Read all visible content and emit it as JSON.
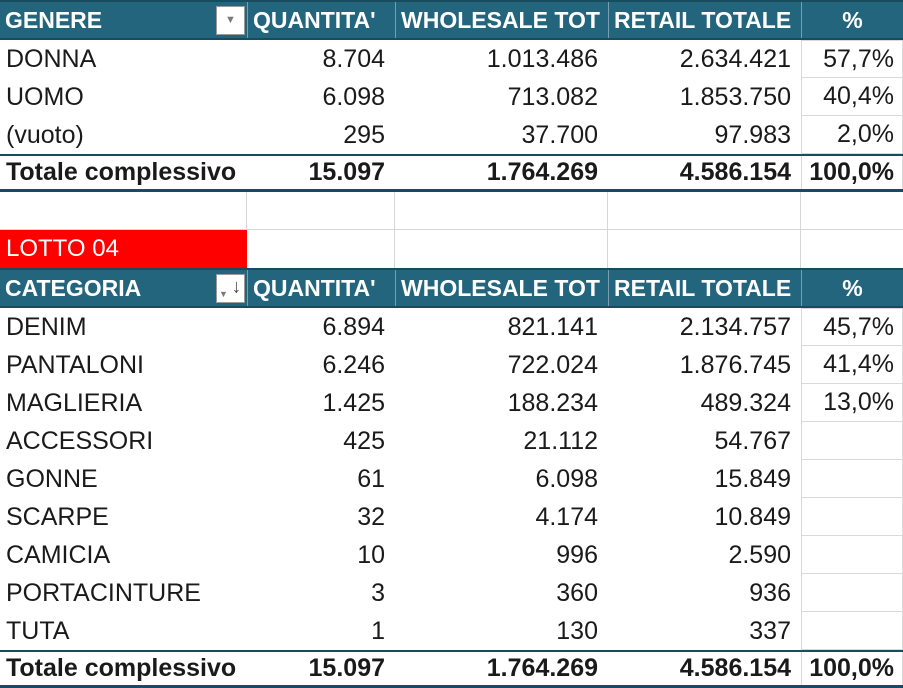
{
  "colors": {
    "header_bg": "#24657E",
    "header_border": "#174C60",
    "lotto_bg": "#FE0000",
    "gridline": "#D6D6D6",
    "pct_cell_border": "#D9D9D9",
    "text": "#1A1A1A",
    "header_text": "#FFFFFF"
  },
  "icons": {
    "filter_glyph": "▼",
    "sort_descending_glyph": "↓"
  },
  "genere_table": {
    "header": {
      "col1": "GENERE",
      "col2": "QUANTITA'",
      "col3": "WHOLESALE TOT",
      "col4": "RETAIL TOTALE",
      "col5": "%"
    },
    "rows": [
      {
        "label": "DONNA",
        "quantita": "8.704",
        "wholesale": "1.013.486",
        "retail": "2.634.421",
        "pct": "57,7%"
      },
      {
        "label": "UOMO",
        "quantita": "6.098",
        "wholesale": "713.082",
        "retail": "1.853.750",
        "pct": "40,4%"
      },
      {
        "label": "(vuoto)",
        "quantita": "295",
        "wholesale": "37.700",
        "retail": "97.983",
        "pct": "2,0%"
      }
    ],
    "total": {
      "label": "Totale complessivo",
      "quantita": "15.097",
      "wholesale": "1.764.269",
      "retail": "4.586.154",
      "pct": "100,0%"
    }
  },
  "lotto": {
    "label": "LOTTO 04"
  },
  "categoria_table": {
    "header": {
      "col1": "CATEGORIA",
      "col2": "QUANTITA'",
      "col3": "WHOLESALE TOT",
      "col4": "RETAIL TOTALE",
      "col5": "%"
    },
    "rows": [
      {
        "label": "DENIM",
        "quantita": "6.894",
        "wholesale": "821.141",
        "retail": "2.134.757",
        "pct": "45,7%"
      },
      {
        "label": "PANTALONI",
        "quantita": "6.246",
        "wholesale": "722.024",
        "retail": "1.876.745",
        "pct": "41,4%"
      },
      {
        "label": "MAGLIERIA",
        "quantita": "1.425",
        "wholesale": "188.234",
        "retail": "489.324",
        "pct": "13,0%"
      },
      {
        "label": "ACCESSORI",
        "quantita": "425",
        "wholesale": "21.112",
        "retail": "54.767",
        "pct": ""
      },
      {
        "label": "GONNE",
        "quantita": "61",
        "wholesale": "6.098",
        "retail": "15.849",
        "pct": ""
      },
      {
        "label": "SCARPE",
        "quantita": "32",
        "wholesale": "4.174",
        "retail": "10.849",
        "pct": ""
      },
      {
        "label": "CAMICIA",
        "quantita": "10",
        "wholesale": "996",
        "retail": "2.590",
        "pct": ""
      },
      {
        "label": "PORTACINTURE",
        "quantita": "3",
        "wholesale": "360",
        "retail": "936",
        "pct": ""
      },
      {
        "label": "TUTA",
        "quantita": "1",
        "wholesale": "130",
        "retail": "337",
        "pct": ""
      }
    ],
    "total": {
      "label": "Totale complessivo",
      "quantita": "15.097",
      "wholesale": "1.764.269",
      "retail": "4.586.154",
      "pct": "100,0%"
    }
  }
}
